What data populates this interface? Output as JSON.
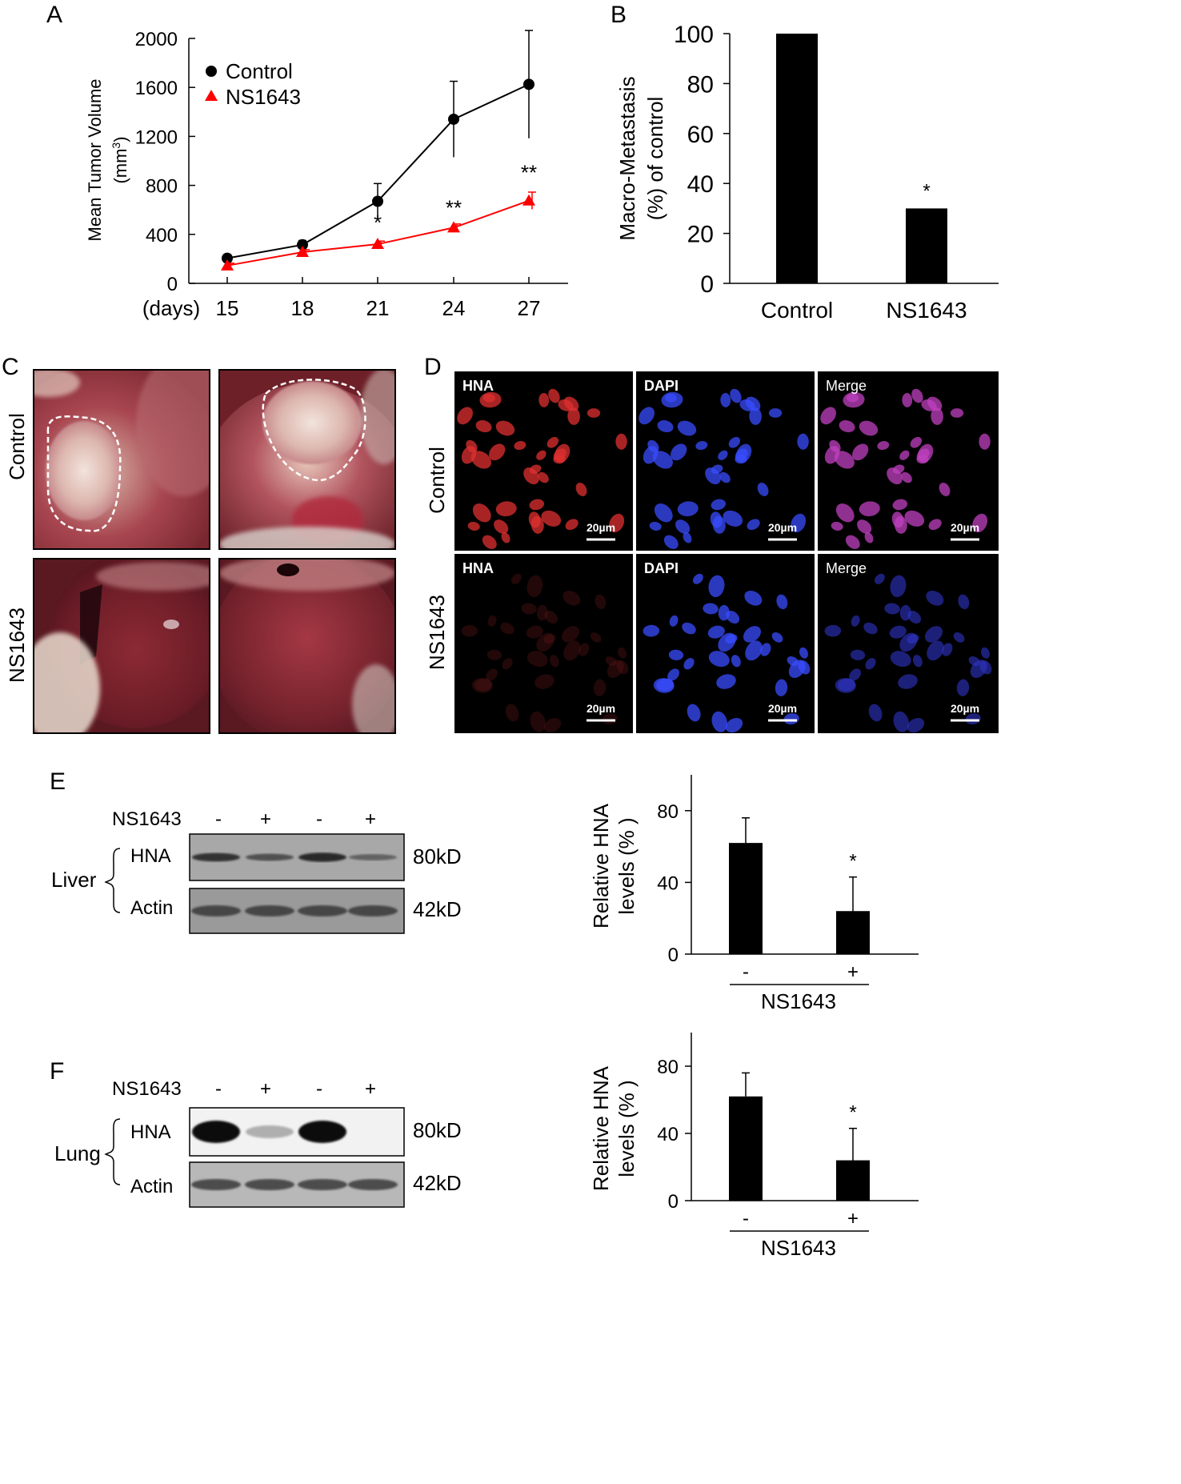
{
  "figure": {
    "panel_letters": [
      "A",
      "B",
      "C",
      "D",
      "E",
      "F"
    ]
  },
  "chart_data": [
    {
      "panel": "A",
      "type": "line",
      "ylabel_line1": "Mean Tumor Volume",
      "ylabel_line2_base": "(mm",
      "ylabel_line2_sup": "3",
      "ylabel_line2_end": ")",
      "xlabel": "(days)",
      "x": [
        15,
        18,
        21,
        24,
        27
      ],
      "ylim": [
        0,
        2000
      ],
      "yticks": [
        0,
        400,
        800,
        1200,
        1600,
        2000
      ],
      "legend_position": "top-left",
      "series": [
        {
          "name": "Control",
          "color": "#000000",
          "marker": "circle",
          "values": [
            205,
            315,
            670,
            1340,
            1625
          ],
          "errors": [
            25,
            35,
            145,
            310,
            440
          ]
        },
        {
          "name": "NS1643",
          "color": "#ff0000",
          "marker": "triangle",
          "values": [
            145,
            255,
            320,
            455,
            675
          ],
          "errors": [
            20,
            20,
            25,
            30,
            70
          ]
        }
      ],
      "significance": [
        "",
        "",
        "*",
        "**",
        "**"
      ]
    },
    {
      "panel": "B",
      "type": "bar",
      "ylabel_line1": "Macro-Metastasis",
      "ylabel_line2": "(%) of control",
      "categories": [
        "Control",
        "NS1643"
      ],
      "values": [
        100,
        30
      ],
      "ylim": [
        0,
        100
      ],
      "yticks": [
        0,
        20,
        40,
        60,
        80,
        100
      ],
      "significance": [
        "",
        "*"
      ]
    },
    {
      "panel": "E",
      "type": "bar",
      "ylabel_line1": "Relative HNA",
      "ylabel_line2": "levels (% )",
      "categories": [
        "-",
        "+"
      ],
      "group_label": "NS1643",
      "values": [
        62,
        24
      ],
      "errors": [
        14,
        19
      ],
      "ylim": [
        0,
        100
      ],
      "yticks": [
        0,
        40,
        80
      ],
      "significance": [
        "",
        "*"
      ]
    },
    {
      "panel": "F",
      "type": "bar",
      "ylabel_line1": "Relative HNA",
      "ylabel_line2": "levels (% )",
      "categories": [
        "-",
        "+"
      ],
      "group_label": "NS1643",
      "values": [
        62,
        24
      ],
      "errors": [
        14,
        19
      ],
      "ylim": [
        0,
        100
      ],
      "yticks": [
        0,
        40,
        80
      ],
      "significance": [
        "",
        "*"
      ]
    }
  ],
  "panel_c": {
    "rows": [
      "Control",
      "NS1643"
    ]
  },
  "panel_d": {
    "rows": [
      "Control",
      "NS1643"
    ],
    "channels": [
      "HNA",
      "DAPI",
      "Merge"
    ],
    "scale_bar": "20µm",
    "colors": {
      "HNA": "#e03030",
      "DAPI": "#3a4cff",
      "Merge": "#c040c0"
    }
  },
  "blot_e": {
    "treatment": "NS1643",
    "lanes": [
      "-",
      "+",
      "-",
      "+"
    ],
    "tissue": "Liver",
    "band1": "HNA",
    "band1_size": "80kD",
    "band2": "Actin",
    "band2_size": "42kD",
    "hna_intensity": [
      0.8,
      0.5,
      0.9,
      0.3
    ]
  },
  "blot_f": {
    "treatment": "NS1643",
    "lanes": [
      "-",
      "+",
      "-",
      "+"
    ],
    "tissue": "Lung",
    "band1": "HNA",
    "band1_size": "80kD",
    "band2": "Actin",
    "band2_size": "42kD",
    "hna_intensity": [
      1.0,
      0.25,
      1.0,
      0.0
    ]
  }
}
